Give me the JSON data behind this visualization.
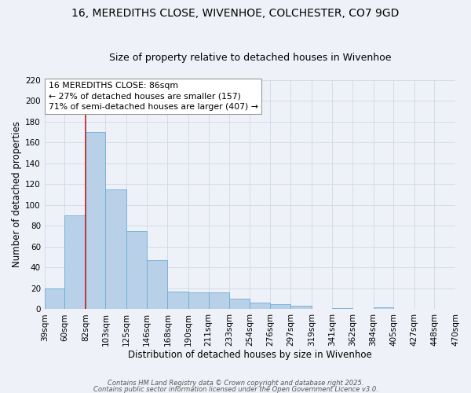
{
  "title": "16, MEREDITHS CLOSE, WIVENHOE, COLCHESTER, CO7 9GD",
  "subtitle": "Size of property relative to detached houses in Wivenhoe",
  "xlabel": "Distribution of detached houses by size in Wivenhoe",
  "ylabel": "Number of detached properties",
  "bar_values": [
    20,
    90,
    170,
    115,
    75,
    47,
    17,
    16,
    16,
    10,
    6,
    5,
    3,
    0,
    1,
    0,
    2,
    0,
    0,
    0
  ],
  "bin_edges": [
    39,
    60,
    82,
    103,
    125,
    146,
    168,
    190,
    211,
    233,
    254,
    276,
    297,
    319,
    341,
    362,
    384,
    405,
    427,
    448,
    470
  ],
  "bin_labels": [
    "39sqm",
    "60sqm",
    "82sqm",
    "103sqm",
    "125sqm",
    "146sqm",
    "168sqm",
    "190sqm",
    "211sqm",
    "233sqm",
    "254sqm",
    "276sqm",
    "297sqm",
    "319sqm",
    "341sqm",
    "362sqm",
    "384sqm",
    "405sqm",
    "427sqm",
    "448sqm",
    "470sqm"
  ],
  "bar_color": "#b8d0e8",
  "bar_edge_color": "#6aaed6",
  "vline_x": 82,
  "vline_color": "#bb2222",
  "ylim": [
    0,
    220
  ],
  "yticks": [
    0,
    20,
    40,
    60,
    80,
    100,
    120,
    140,
    160,
    180,
    200,
    220
  ],
  "annotation_title": "16 MEREDITHS CLOSE: 86sqm",
  "annotation_line1": "← 27% of detached houses are smaller (157)",
  "annotation_line2": "71% of semi-detached houses are larger (407) →",
  "annotation_box_color": "#ffffff",
  "annotation_box_edge": "#999999",
  "background_color": "#eef2f8",
  "grid_color": "#d0d8e4",
  "footer1": "Contains HM Land Registry data © Crown copyright and database right 2025.",
  "footer2": "Contains public sector information licensed under the Open Government Licence v3.0.",
  "title_fontsize": 10,
  "subtitle_fontsize": 9,
  "axis_label_fontsize": 8.5,
  "tick_fontsize": 7.5,
  "annotation_fontsize": 7.8
}
